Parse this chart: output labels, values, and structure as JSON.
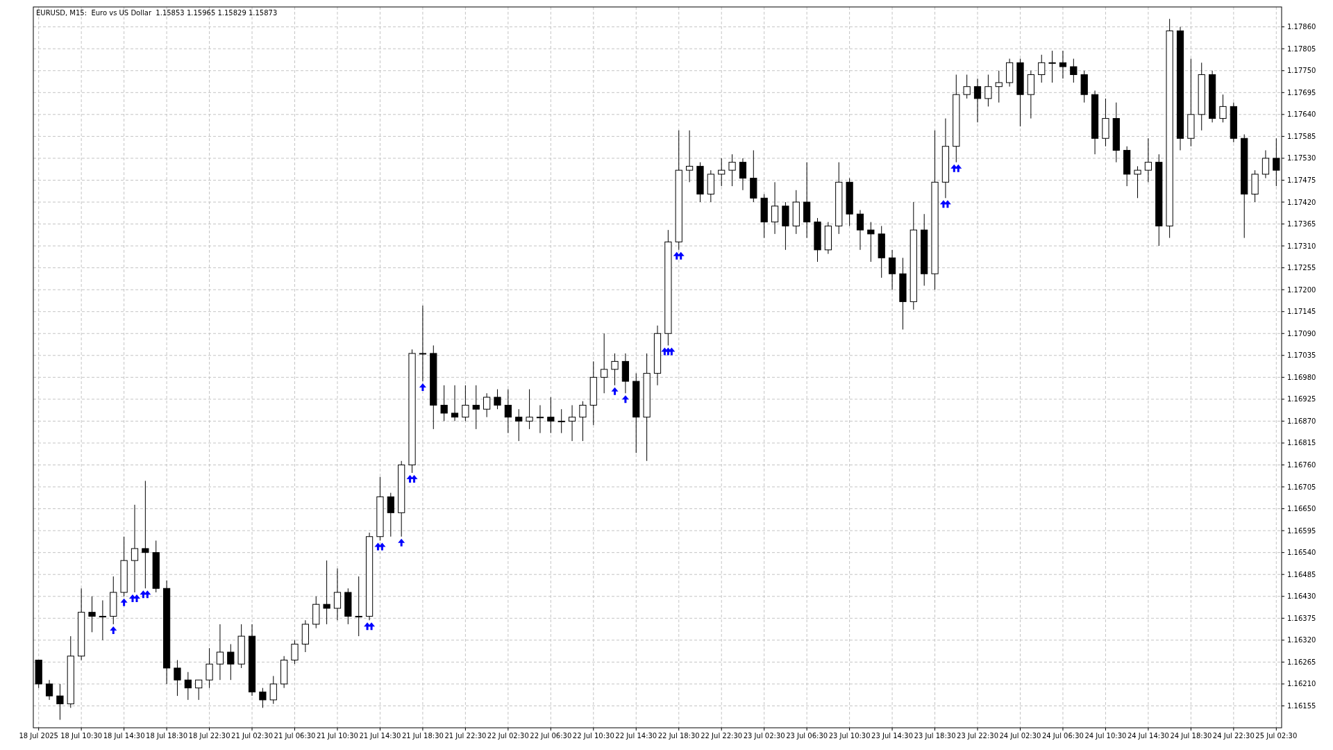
{
  "chart_data": {
    "type": "candlestick",
    "title": "EURUSD, M15:  Euro vs US Dollar  1.15853 1.15965 1.15829 1.15873",
    "color": "#000000",
    "grid": true,
    "categories": [
      "18 Jul 2025",
      null,
      null,
      null,
      "18 Jul 10:30",
      null,
      null,
      null,
      "18 Jul 14:30",
      null,
      null,
      null,
      "18 Jul 18:30",
      null,
      null,
      null,
      "18 Jul 22:30",
      null,
      null,
      null,
      "21 Jul 02:30",
      null,
      null,
      null,
      "21 Jul 06:30",
      null,
      null,
      null,
      "21 Jul 10:30",
      null,
      null,
      null,
      "21 Jul 14:30",
      null,
      null,
      null,
      "21 Jul 18:30",
      null,
      null,
      null,
      "21 Jul 22:30",
      null,
      null,
      null,
      "22 Jul 02:30",
      null,
      null,
      null,
      "22 Jul 06:30",
      null,
      null,
      null,
      "22 Jul 10:30",
      null,
      null,
      null,
      "22 Jul 14:30",
      null,
      null,
      null,
      "22 Jul 18:30",
      null,
      null,
      null,
      "22 Jul 22:30",
      null,
      null,
      null,
      "23 Jul 02:30",
      null,
      null,
      null,
      "23 Jul 06:30",
      null,
      null,
      null,
      "23 Jul 10:30",
      null,
      null,
      null,
      "23 Jul 14:30",
      null,
      null,
      null,
      "23 Jul 18:30",
      null,
      null,
      null,
      "23 Jul 22:30",
      null,
      null,
      null,
      "24 Jul 02:30",
      null,
      null,
      null,
      "24 Jul 06:30",
      null,
      null,
      null,
      "24 Jul 10:30",
      null,
      null,
      null,
      "24 Jul 14:30",
      null,
      null,
      null,
      "24 Jul 18:30",
      null,
      null,
      null,
      "24 Jul 22:30",
      null,
      null,
      null,
      "25 Jul 02:30"
    ],
    "ohlc": [
      [
        1.1627,
        1.1627,
        1.162,
        1.1621
      ],
      [
        1.1621,
        1.1622,
        1.1617,
        1.1618
      ],
      [
        1.1618,
        1.1621,
        1.1612,
        1.1616
      ],
      [
        1.1616,
        1.1633,
        1.1615,
        1.1628
      ],
      [
        1.1628,
        1.1645,
        1.1627,
        1.1639
      ],
      [
        1.1639,
        1.1643,
        1.1634,
        1.1638
      ],
      [
        1.1638,
        1.1642,
        1.1632,
        1.1638
      ],
      [
        1.1638,
        1.1648,
        1.1636,
        1.1644
      ],
      [
        1.1644,
        1.1658,
        1.1643,
        1.1652
      ],
      [
        1.1652,
        1.1666,
        1.1644,
        1.1655
      ],
      [
        1.1655,
        1.1672,
        1.1645,
        1.1654
      ],
      [
        1.1654,
        1.1657,
        1.1644,
        1.1645
      ],
      [
        1.1645,
        1.1647,
        1.1621,
        1.1625
      ],
      [
        1.1625,
        1.1627,
        1.1618,
        1.1622
      ],
      [
        1.1622,
        1.1624,
        1.1617,
        1.162
      ],
      [
        1.162,
        1.1622,
        1.1617,
        1.1622
      ],
      [
        1.1622,
        1.163,
        1.162,
        1.1626
      ],
      [
        1.1626,
        1.1636,
        1.1622,
        1.1629
      ],
      [
        1.1629,
        1.1631,
        1.1622,
        1.1626
      ],
      [
        1.1626,
        1.1636,
        1.1625,
        1.1633
      ],
      [
        1.1633,
        1.1636,
        1.1618,
        1.1619
      ],
      [
        1.1619,
        1.162,
        1.1615,
        1.1617
      ],
      [
        1.1617,
        1.1623,
        1.1616,
        1.1621
      ],
      [
        1.1621,
        1.1628,
        1.162,
        1.1627
      ],
      [
        1.1627,
        1.1632,
        1.1626,
        1.1631
      ],
      [
        1.1631,
        1.1637,
        1.1629,
        1.1636
      ],
      [
        1.1636,
        1.1643,
        1.1635,
        1.1641
      ],
      [
        1.1641,
        1.1652,
        1.1636,
        1.164
      ],
      [
        1.164,
        1.165,
        1.1637,
        1.1644
      ],
      [
        1.1644,
        1.1645,
        1.1636,
        1.1638
      ],
      [
        1.1638,
        1.1648,
        1.1633,
        1.1638
      ],
      [
        1.1638,
        1.1659,
        1.1637,
        1.1658
      ],
      [
        1.1658,
        1.1673,
        1.1657,
        1.1668
      ],
      [
        1.1668,
        1.1669,
        1.1658,
        1.1664
      ],
      [
        1.1664,
        1.1677,
        1.1658,
        1.1676
      ],
      [
        1.1676,
        1.1705,
        1.1674,
        1.1704
      ],
      [
        1.1704,
        1.1716,
        1.1697,
        1.1704
      ],
      [
        1.1704,
        1.1706,
        1.1685,
        1.1691
      ],
      [
        1.1691,
        1.1696,
        1.1687,
        1.1689
      ],
      [
        1.1689,
        1.1696,
        1.1687,
        1.1688
      ],
      [
        1.1688,
        1.1696,
        1.1687,
        1.1691
      ],
      [
        1.1691,
        1.1696,
        1.1685,
        1.169
      ],
      [
        1.169,
        1.1694,
        1.1688,
        1.1693
      ],
      [
        1.1693,
        1.1695,
        1.169,
        1.1691
      ],
      [
        1.1691,
        1.1695,
        1.1684,
        1.1688
      ],
      [
        1.1688,
        1.169,
        1.1682,
        1.1687
      ],
      [
        1.1687,
        1.1695,
        1.1685,
        1.1688
      ],
      [
        1.1688,
        1.1691,
        1.1684,
        1.1688
      ],
      [
        1.1688,
        1.1693,
        1.1684,
        1.1687
      ],
      [
        1.1687,
        1.169,
        1.1684,
        1.1687
      ],
      [
        1.1687,
        1.1691,
        1.1682,
        1.1688
      ],
      [
        1.1688,
        1.1692,
        1.1682,
        1.1691
      ],
      [
        1.1691,
        1.1702,
        1.1686,
        1.1698
      ],
      [
        1.1698,
        1.1709,
        1.1694,
        1.17
      ],
      [
        1.17,
        1.1704,
        1.1696,
        1.1702
      ],
      [
        1.1702,
        1.1704,
        1.1694,
        1.1697
      ],
      [
        1.1697,
        1.1699,
        1.1679,
        1.1688
      ],
      [
        1.1688,
        1.1704,
        1.1677,
        1.1699
      ],
      [
        1.1699,
        1.1711,
        1.1696,
        1.1709
      ],
      [
        1.1709,
        1.1735,
        1.1706,
        1.1732
      ],
      [
        1.1732,
        1.176,
        1.173,
        1.175
      ],
      [
        1.175,
        1.176,
        1.1747,
        1.1751
      ],
      [
        1.1751,
        1.1752,
        1.1742,
        1.1744
      ],
      [
        1.1744,
        1.175,
        1.1742,
        1.1749
      ],
      [
        1.1749,
        1.1753,
        1.1746,
        1.175
      ],
      [
        1.175,
        1.1754,
        1.1746,
        1.1752
      ],
      [
        1.1752,
        1.1753,
        1.1745,
        1.1748
      ],
      [
        1.1748,
        1.1755,
        1.1742,
        1.1743
      ],
      [
        1.1743,
        1.1744,
        1.1733,
        1.1737
      ],
      [
        1.1737,
        1.1747,
        1.1734,
        1.1741
      ],
      [
        1.1741,
        1.1742,
        1.173,
        1.1736
      ],
      [
        1.1736,
        1.1745,
        1.1734,
        1.1742
      ],
      [
        1.1742,
        1.1752,
        1.1733,
        1.1737
      ],
      [
        1.1737,
        1.1738,
        1.1727,
        1.173
      ],
      [
        1.173,
        1.1737,
        1.1729,
        1.1736
      ],
      [
        1.1736,
        1.1752,
        1.1734,
        1.1747
      ],
      [
        1.1747,
        1.1748,
        1.1736,
        1.1739
      ],
      [
        1.1739,
        1.174,
        1.173,
        1.1735
      ],
      [
        1.1735,
        1.1737,
        1.1727,
        1.1734
      ],
      [
        1.1734,
        1.1736,
        1.1723,
        1.1728
      ],
      [
        1.1728,
        1.173,
        1.172,
        1.1724
      ],
      [
        1.1724,
        1.1728,
        1.171,
        1.1717
      ],
      [
        1.1717,
        1.1742,
        1.1715,
        1.1735
      ],
      [
        1.1735,
        1.1739,
        1.1721,
        1.1724
      ],
      [
        1.1724,
        1.176,
        1.172,
        1.1747
      ],
      [
        1.1747,
        1.1763,
        1.1743,
        1.1756
      ],
      [
        1.1756,
        1.1774,
        1.1752,
        1.1769
      ],
      [
        1.1769,
        1.1774,
        1.1768,
        1.1771
      ],
      [
        1.1771,
        1.1773,
        1.1762,
        1.1768
      ],
      [
        1.1768,
        1.1774,
        1.1766,
        1.1771
      ],
      [
        1.1771,
        1.1775,
        1.1767,
        1.1772
      ],
      [
        1.1772,
        1.1778,
        1.1771,
        1.1777
      ],
      [
        1.1777,
        1.1778,
        1.1761,
        1.1769
      ],
      [
        1.1769,
        1.1775,
        1.1763,
        1.1774
      ],
      [
        1.1774,
        1.1779,
        1.1772,
        1.1777
      ],
      [
        1.1777,
        1.178,
        1.1772,
        1.1777
      ],
      [
        1.1777,
        1.178,
        1.1773,
        1.1776
      ],
      [
        1.1776,
        1.1778,
        1.1772,
        1.1774
      ],
      [
        1.1774,
        1.1775,
        1.1767,
        1.1769
      ],
      [
        1.1769,
        1.177,
        1.1754,
        1.1758
      ],
      [
        1.1758,
        1.1768,
        1.1756,
        1.1763
      ],
      [
        1.1763,
        1.1767,
        1.1752,
        1.1755
      ],
      [
        1.1755,
        1.1756,
        1.1746,
        1.1749
      ],
      [
        1.1749,
        1.1751,
        1.1743,
        1.175
      ],
      [
        1.175,
        1.1758,
        1.1747,
        1.1752
      ],
      [
        1.1752,
        1.1754,
        1.1731,
        1.1736
      ],
      [
        1.1736,
        1.1788,
        1.1733,
        1.1785
      ],
      [
        1.1785,
        1.1786,
        1.1755,
        1.1758
      ],
      [
        1.1758,
        1.1778,
        1.1756,
        1.1764
      ],
      [
        1.1764,
        1.1777,
        1.176,
        1.1774
      ],
      [
        1.1774,
        1.1775,
        1.1762,
        1.1763
      ],
      [
        1.1763,
        1.1769,
        1.1762,
        1.1766
      ],
      [
        1.1766,
        1.1767,
        1.1757,
        1.1758
      ],
      [
        1.1758,
        1.1759,
        1.1733,
        1.1744
      ],
      [
        1.1744,
        1.175,
        1.1742,
        1.1749
      ],
      [
        1.1749,
        1.1755,
        1.1748,
        1.1753
      ],
      [
        1.1753,
        1.1758,
        1.1746,
        1.175
      ]
    ],
    "ylim": [
      1.161,
      1.1791
    ],
    "yticks": [
      1.16155,
      {
        "value": 1.1621,
        "label": "1.16210"
      },
      1.16265,
      {
        "value": 1.1632,
        "label": "1.16320"
      },
      1.16375,
      {
        "value": 1.1643,
        "label": "1.16430"
      },
      1.16485,
      {
        "value": 1.1654,
        "label": "1.16540"
      },
      1.16595,
      {
        "value": 1.1665,
        "label": "1.16650"
      },
      1.16705,
      {
        "value": 1.1676,
        "label": "1.16760"
      },
      1.16815,
      {
        "value": 1.1687,
        "label": "1.16870"
      },
      1.16925,
      {
        "value": 1.1698,
        "label": "1.16980"
      },
      1.17035,
      {
        "value": 1.1709,
        "label": "1.17090"
      },
      1.17145,
      {
        "value": 1.172,
        "label": "1.17200"
      },
      1.17255,
      {
        "value": 1.1731,
        "label": "1.17310"
      },
      1.17365,
      {
        "value": 1.1742,
        "label": "1.17420"
      },
      1.17475,
      {
        "value": 1.1753,
        "label": "1.17530"
      },
      1.17585,
      {
        "value": 1.1764,
        "label": "1.17640"
      },
      1.17695,
      {
        "value": 1.1775,
        "label": "1.17750"
      },
      1.17805,
      {
        "value": 1.1786,
        "label": "1.17860"
      }
    ]
  }
}
